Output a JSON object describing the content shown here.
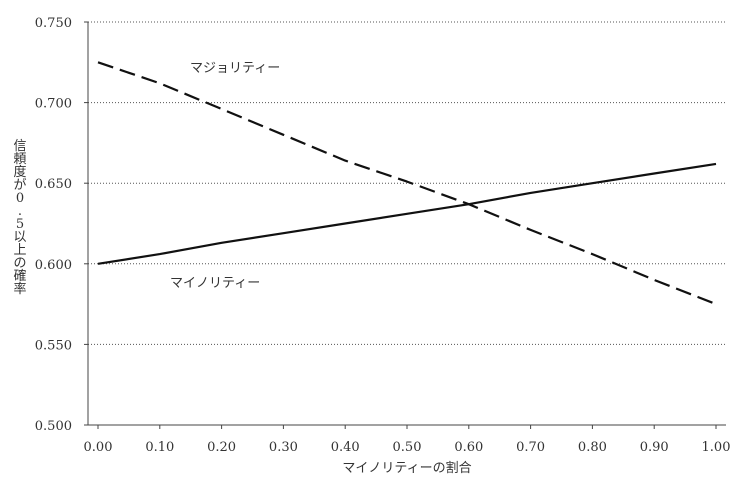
{
  "chart_data": {
    "type": "line",
    "xlabel": "マイノリティーの割合",
    "ylabel": "信頼度が0.5以上の確率",
    "xlim": [
      0.0,
      1.0
    ],
    "ylim": [
      0.5,
      0.75
    ],
    "x_ticks": [
      "0.00",
      "0.10",
      "0.20",
      "0.30",
      "0.40",
      "0.50",
      "0.60",
      "0.70",
      "0.80",
      "0.90",
      "1.00"
    ],
    "y_ticks": [
      "0.500",
      "0.550",
      "0.600",
      "0.650",
      "0.700",
      "0.750"
    ],
    "grid": "horizontal-dotted",
    "x": [
      0.0,
      0.1,
      0.2,
      0.3,
      0.4,
      0.5,
      0.6,
      0.7,
      0.8,
      0.9,
      1.0
    ],
    "series": [
      {
        "name": "マジョリティー",
        "style": "dashed",
        "color": "#111111",
        "values": [
          0.725,
          0.712,
          0.696,
          0.68,
          0.664,
          0.651,
          0.637,
          0.621,
          0.606,
          0.59,
          0.575
        ]
      },
      {
        "name": "マイノリティー",
        "style": "solid",
        "color": "#111111",
        "values": [
          0.6,
          0.606,
          0.613,
          0.619,
          0.625,
          0.631,
          0.637,
          0.644,
          0.65,
          0.656,
          0.662
        ]
      }
    ]
  }
}
